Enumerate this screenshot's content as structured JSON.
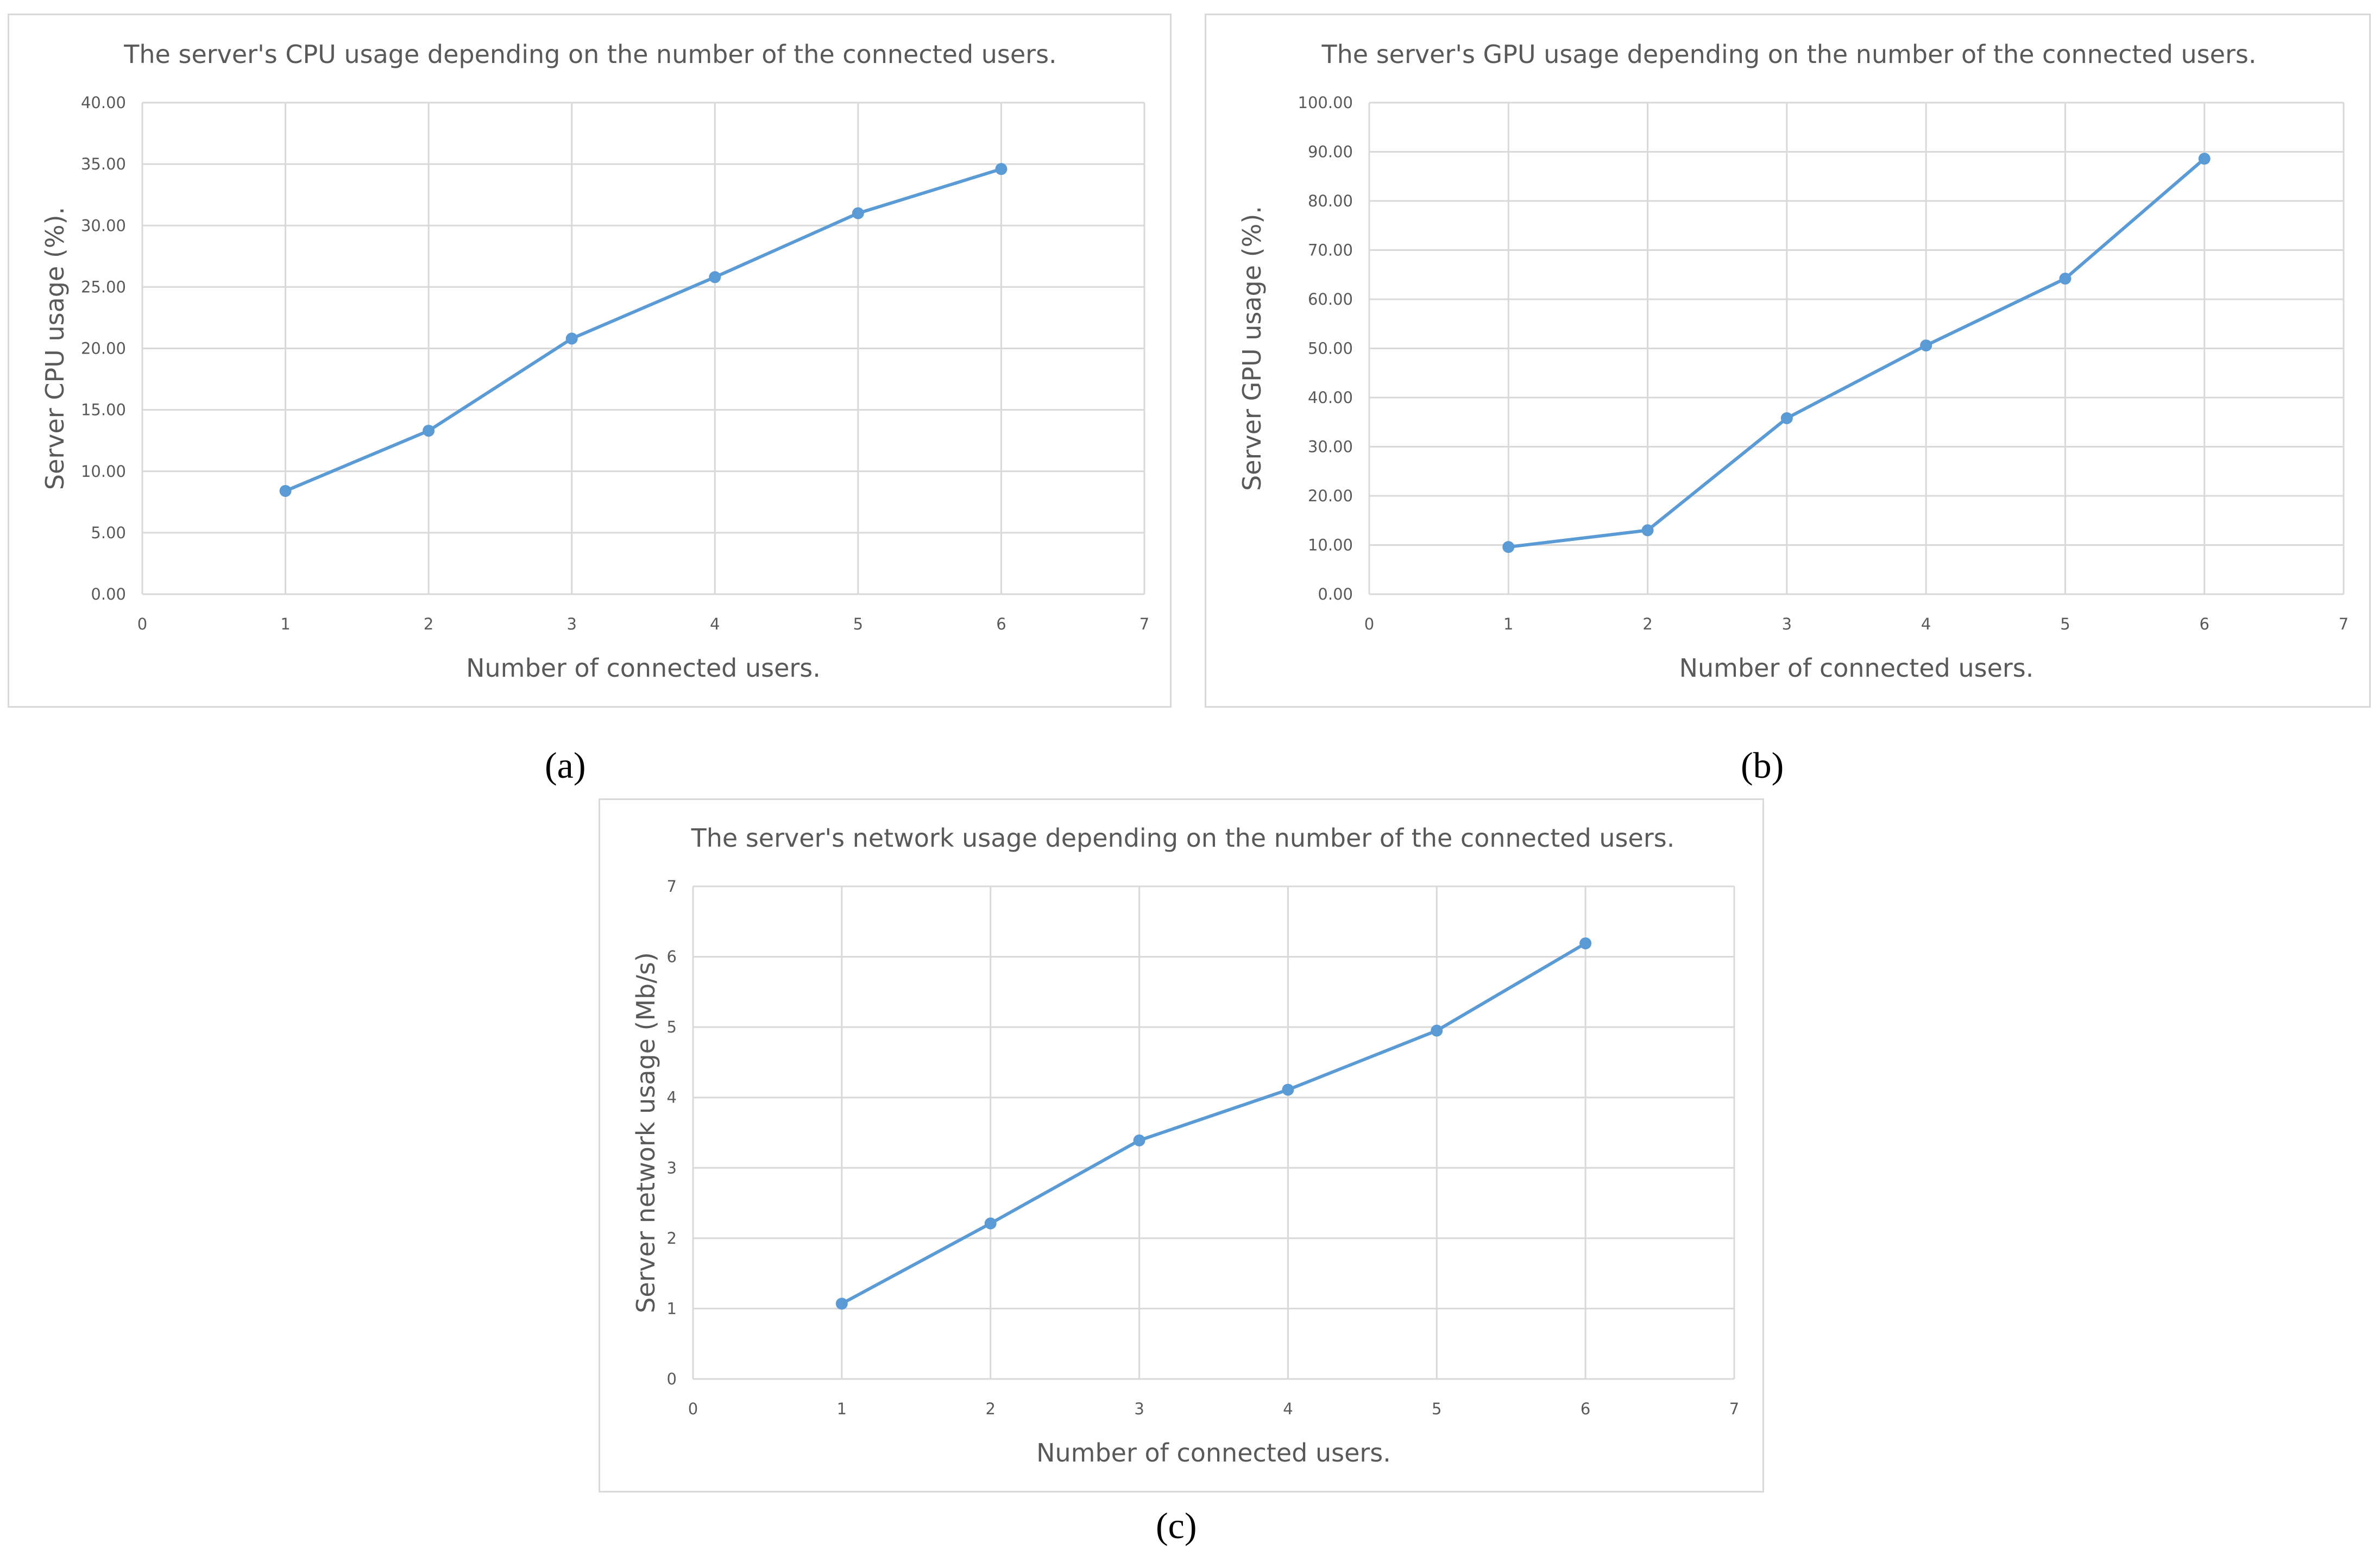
{
  "chart_data": [
    {
      "type": "line",
      "title": "The server's CPU usage depending on the number of the connected users.",
      "xlabel": "Number of connected users.",
      "ylabel": "Server CPU usage (%).",
      "x": [
        1,
        2,
        3,
        4,
        5,
        6
      ],
      "series": [
        {
          "values": [
            8.4,
            13.3,
            20.8,
            25.8,
            31.0,
            34.6
          ]
        }
      ],
      "xlim": [
        0,
        7
      ],
      "ylim": [
        0,
        40
      ],
      "xticks": [
        "0",
        "1",
        "2",
        "3",
        "4",
        "5",
        "6",
        "7"
      ],
      "yticks": [
        "0.00",
        "5.00",
        "10.00",
        "15.00",
        "20.00",
        "25.00",
        "30.00",
        "35.00",
        "40.00"
      ],
      "grid": true,
      "color": "#5b9bd5",
      "caption": "(a)"
    },
    {
      "type": "line",
      "title": "The server's GPU usage depending on the number of the connected users.",
      "xlabel": "Number of connected users.",
      "ylabel": "Server GPU usage (%).",
      "x": [
        1,
        2,
        3,
        4,
        5,
        6
      ],
      "series": [
        {
          "values": [
            9.6,
            13.0,
            35.8,
            50.6,
            64.2,
            88.6
          ]
        }
      ],
      "xlim": [
        0,
        7
      ],
      "ylim": [
        0,
        100
      ],
      "xticks": [
        "0",
        "1",
        "2",
        "3",
        "4",
        "5",
        "6",
        "7"
      ],
      "yticks": [
        "0.00",
        "10.00",
        "20.00",
        "30.00",
        "40.00",
        "50.00",
        "60.00",
        "70.00",
        "80.00",
        "90.00",
        "100.00"
      ],
      "grid": true,
      "color": "#5b9bd5",
      "caption": "(b)"
    },
    {
      "type": "line",
      "title": "The server's network usage depending on the number of the connected users.",
      "xlabel": "Number of connected users.",
      "ylabel": "Server network usage (Mb/s)",
      "x": [
        1,
        2,
        3,
        4,
        5,
        6
      ],
      "series": [
        {
          "values": [
            1.07,
            2.21,
            3.39,
            4.11,
            4.95,
            6.19
          ]
        }
      ],
      "xlim": [
        0,
        7
      ],
      "ylim": [
        0,
        7
      ],
      "xticks": [
        "0",
        "1",
        "2",
        "3",
        "4",
        "5",
        "6",
        "7"
      ],
      "yticks": [
        "0",
        "1",
        "2",
        "3",
        "4",
        "5",
        "6",
        "7"
      ],
      "grid": true,
      "color": "#5b9bd5",
      "caption": "(c)"
    }
  ]
}
